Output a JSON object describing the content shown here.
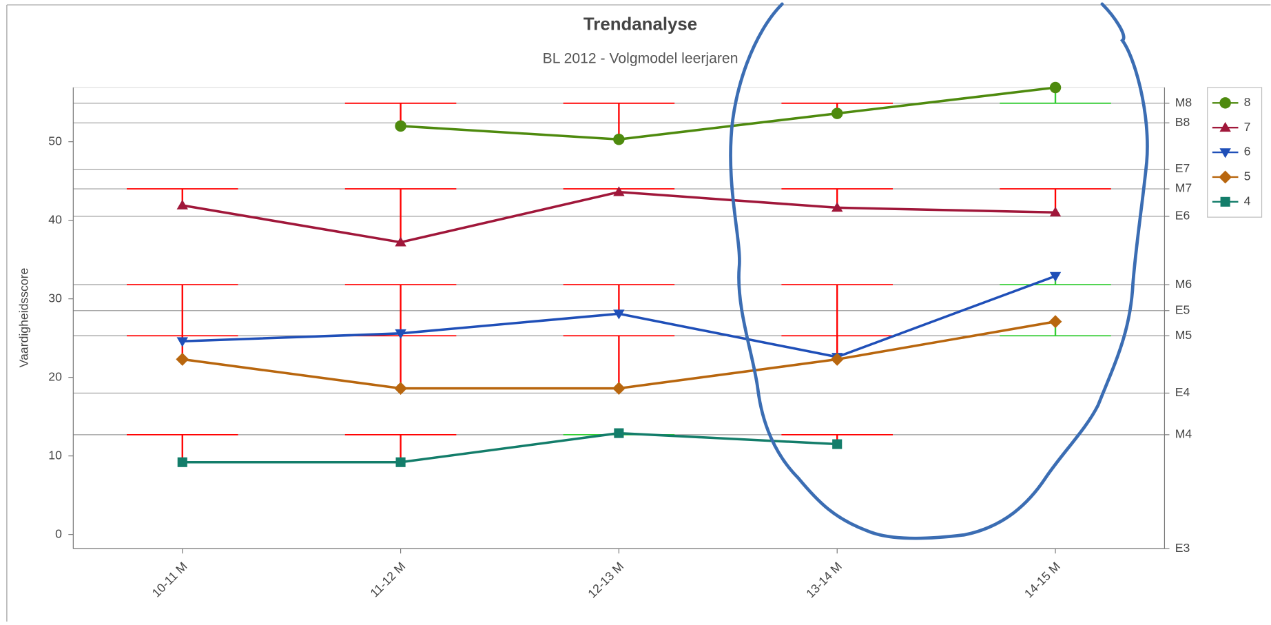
{
  "chart_data": {
    "type": "line",
    "title": "Trendanalyse",
    "subtitle": "BL 2012 - Volgmodel leerjaren",
    "y_label": "Vaardigheidsscore",
    "categories": [
      "10-11 M",
      "11-12 M",
      "12-13 M",
      "13-14 M",
      "14-15 M"
    ],
    "series": [
      {
        "name": "8",
        "color": "#4e8a0e",
        "marker": "circle",
        "target": 54.9,
        "values": [
          null,
          52.0,
          50.3,
          53.6,
          56.9
        ]
      },
      {
        "name": "7",
        "color": "#a0173a",
        "marker": "triangle-up",
        "target": 44.0,
        "values": [
          41.9,
          37.2,
          43.6,
          41.6,
          41.0
        ]
      },
      {
        "name": "6",
        "color": "#1f4fb8",
        "marker": "triangle-down",
        "target": 31.8,
        "values": [
          24.6,
          25.6,
          28.1,
          22.6,
          32.9
        ]
      },
      {
        "name": "5",
        "color": "#b8660e",
        "marker": "diamond",
        "target": 25.3,
        "values": [
          22.3,
          18.6,
          18.6,
          22.3,
          27.1
        ]
      },
      {
        "name": "4",
        "color": "#137d6a",
        "marker": "square",
        "target": 12.7,
        "values": [
          9.2,
          9.2,
          12.9,
          11.5,
          null
        ]
      }
    ],
    "below_color": "#ff0000",
    "above_color": "#33cc33",
    "ylim": [
      -1.8,
      56.9
    ],
    "yticks": [
      0,
      10,
      20,
      30,
      40,
      50
    ],
    "y2lim": [
      -1.8,
      56.9
    ],
    "y2ticks": [
      {
        "value": 54.9,
        "label": "M8"
      },
      {
        "value": 52.4,
        "label": "B8"
      },
      {
        "value": 46.5,
        "label": "E7"
      },
      {
        "value": 44.0,
        "label": "M7"
      },
      {
        "value": 40.5,
        "label": "E6"
      },
      {
        "value": 31.8,
        "label": "M6"
      },
      {
        "value": 28.5,
        "label": "E5"
      },
      {
        "value": 25.3,
        "label": "M5"
      },
      {
        "value": 18.0,
        "label": "E4"
      },
      {
        "value": 12.7,
        "label": "M4"
      },
      {
        "value": -1.8,
        "label": "E3"
      }
    ],
    "grid": true,
    "legend": "right"
  }
}
